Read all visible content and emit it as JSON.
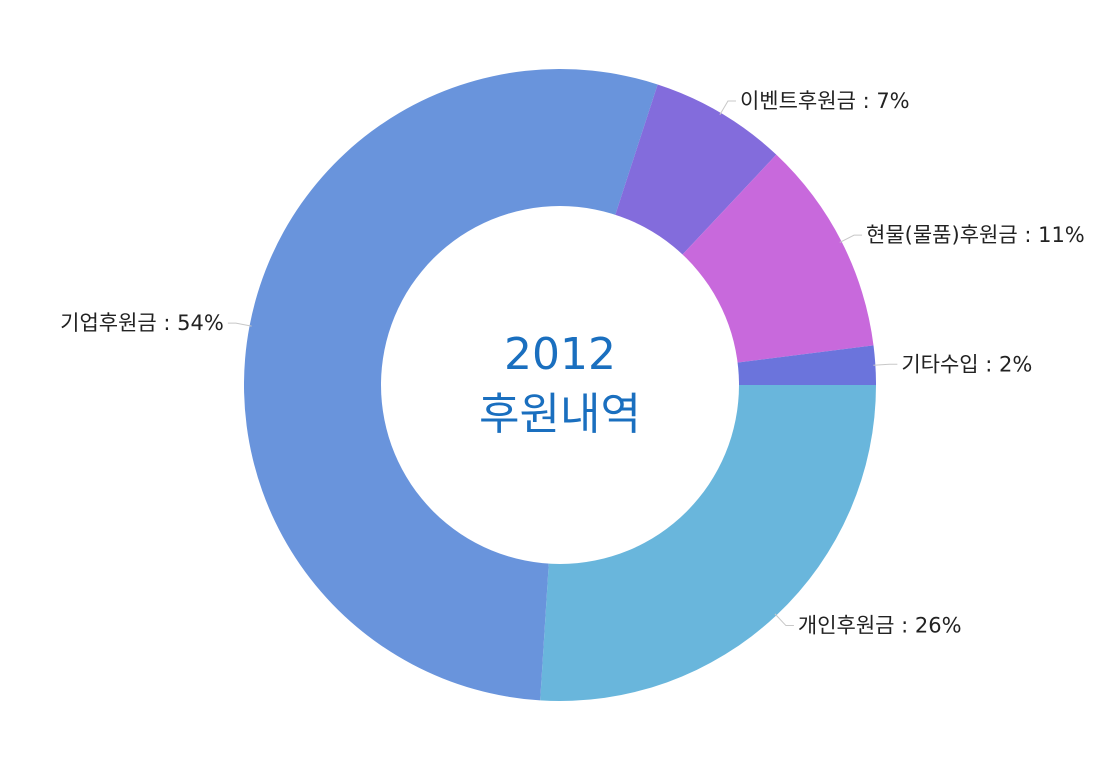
{
  "chart_data": {
    "type": "pie",
    "variant": "donut",
    "center_text": {
      "line1": "2012",
      "line2": "후원내역"
    },
    "unit": "%",
    "slices": [
      {
        "label": "개인후원금 : 26%",
        "name": "개인후원금",
        "value": 26,
        "color": "#69b6dc"
      },
      {
        "label": "기업후원금 : 54%",
        "name": "기업후원금",
        "value": 54,
        "color": "#6994dc"
      },
      {
        "label": "이벤트후원금 : 7%",
        "name": "이벤트후원금",
        "value": 7,
        "color": "#836cdc"
      },
      {
        "label": "현물(물품)후원금 : 11%",
        "name": "현물(물품)후원금",
        "value": 11,
        "color": "#c869dc"
      },
      {
        "label": "기타수입 : 2%",
        "name": "기타수입",
        "value": 2,
        "color": "#6b74dc"
      }
    ],
    "legend": "none",
    "labels": "outside"
  },
  "colors": {
    "center_text": "#1a6fbf",
    "label_text": "#222222",
    "background": "#ffffff"
  }
}
